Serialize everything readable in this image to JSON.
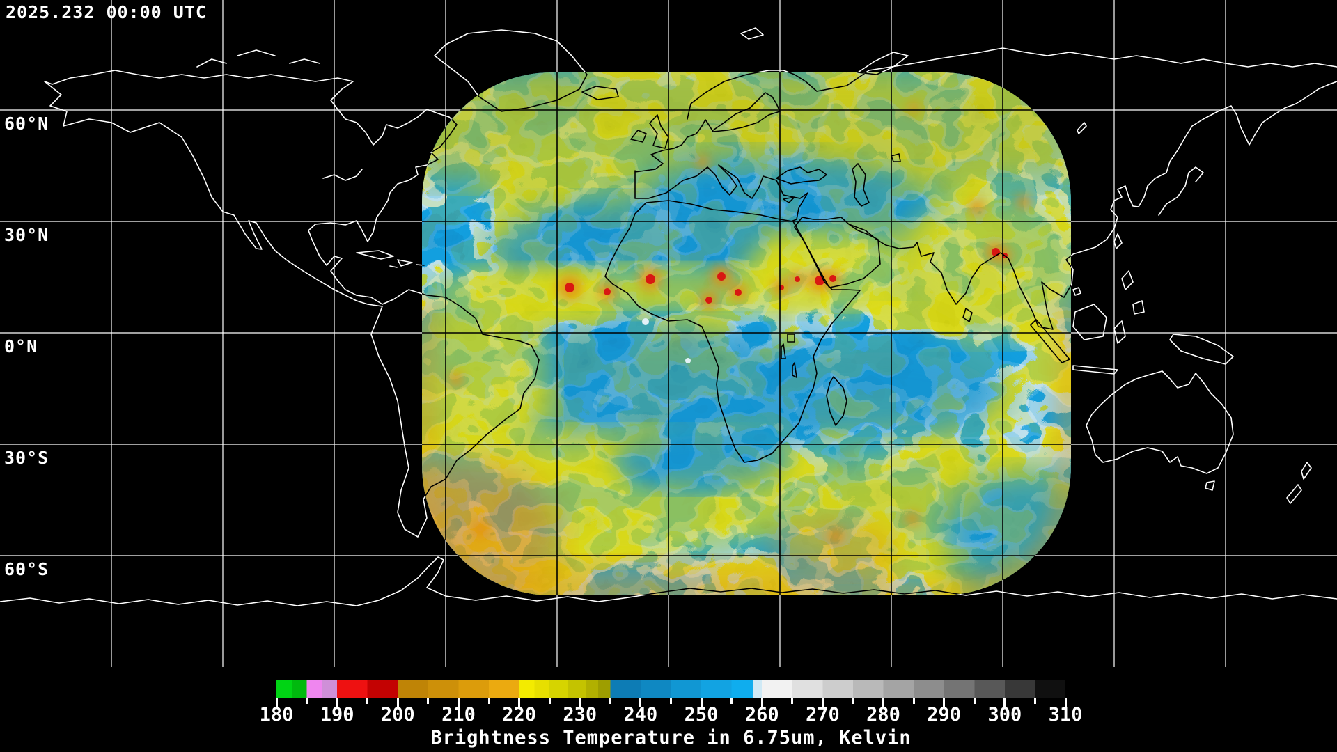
{
  "header": {
    "timestamp": "2025.232 00:00 UTC"
  },
  "map": {
    "background": "#000000",
    "grid_color": "#ffffff",
    "grid_color_inside_swath": "#000000",
    "coastline_color_outside": "#ffffff",
    "coastline_color_inside_swath": "#000000",
    "grid_interval_deg": 30,
    "lat_labels": [
      "60°N",
      "30°N",
      "0°N",
      "30°S",
      "60°S"
    ]
  },
  "swath": {
    "name": "geostationary-water-vapor-data-swath",
    "base_color": "#1b93cc",
    "cloud_color": "#d6d81c",
    "olive_color": "#b9bb14",
    "warm_edge_color": "#e09018",
    "convective_core_color": "#d91111"
  },
  "colorbar": {
    "min": 180,
    "max": 310,
    "minor_tick_step": 5,
    "major_tick_step": 10,
    "tick_labels": [
      "180",
      "190",
      "200",
      "210",
      "220",
      "230",
      "240",
      "250",
      "260",
      "270",
      "280",
      "290",
      "300",
      "310"
    ],
    "caption": "Brightness Temperature in 6.75um, Kelvin",
    "segments": [
      {
        "from": 180.0,
        "to": 182.5,
        "color": "#00d414"
      },
      {
        "from": 182.5,
        "to": 185.0,
        "color": "#00b90e"
      },
      {
        "from": 185.0,
        "to": 187.5,
        "color": "#ef86ef"
      },
      {
        "from": 187.5,
        "to": 190.0,
        "color": "#cf8fd8"
      },
      {
        "from": 190.0,
        "to": 195.0,
        "color": "#ee1111"
      },
      {
        "from": 195.0,
        "to": 200.0,
        "color": "#c30202"
      },
      {
        "from": 200.0,
        "to": 205.0,
        "color": "#bf8406"
      },
      {
        "from": 205.0,
        "to": 210.0,
        "color": "#cd9009"
      },
      {
        "from": 210.0,
        "to": 215.0,
        "color": "#dc9c0b"
      },
      {
        "from": 215.0,
        "to": 220.0,
        "color": "#ebaa10"
      },
      {
        "from": 220.0,
        "to": 222.5,
        "color": "#f3eb00"
      },
      {
        "from": 222.5,
        "to": 225.0,
        "color": "#e7df00"
      },
      {
        "from": 225.0,
        "to": 228.0,
        "color": "#d6d400"
      },
      {
        "from": 228.0,
        "to": 231.0,
        "color": "#c4c300"
      },
      {
        "from": 231.0,
        "to": 233.0,
        "color": "#b1b000"
      },
      {
        "from": 233.0,
        "to": 235.0,
        "color": "#9e9e00"
      },
      {
        "from": 235.0,
        "to": 240.0,
        "color": "#0d7cb5"
      },
      {
        "from": 240.0,
        "to": 245.0,
        "color": "#0f88c2"
      },
      {
        "from": 245.0,
        "to": 250.0,
        "color": "#1197d3"
      },
      {
        "from": 250.0,
        "to": 255.0,
        "color": "#12a3e2"
      },
      {
        "from": 255.0,
        "to": 258.5,
        "color": "#0fadee"
      },
      {
        "from": 258.5,
        "to": 260.0,
        "color": "#cfe9f5"
      },
      {
        "from": 260.0,
        "to": 265.0,
        "color": "#f2f2f2"
      },
      {
        "from": 265.0,
        "to": 270.0,
        "color": "#e0e0e0"
      },
      {
        "from": 270.0,
        "to": 275.0,
        "color": "#cdcdcd"
      },
      {
        "from": 275.0,
        "to": 280.0,
        "color": "#b9b9b9"
      },
      {
        "from": 280.0,
        "to": 285.0,
        "color": "#a4a4a4"
      },
      {
        "from": 285.0,
        "to": 290.0,
        "color": "#8d8d8d"
      },
      {
        "from": 290.0,
        "to": 295.0,
        "color": "#747474"
      },
      {
        "from": 295.0,
        "to": 300.0,
        "color": "#585858"
      },
      {
        "from": 300.0,
        "to": 305.0,
        "color": "#383838"
      },
      {
        "from": 305.0,
        "to": 310.0,
        "color": "#101010"
      }
    ]
  }
}
